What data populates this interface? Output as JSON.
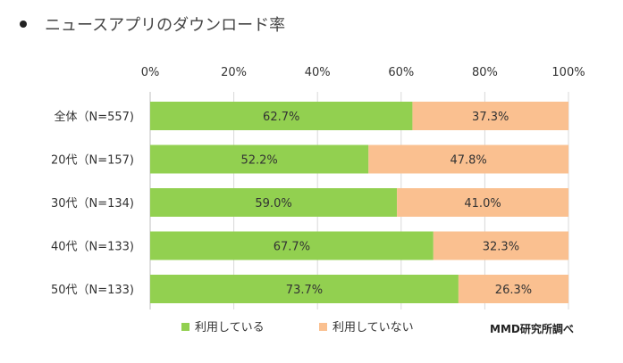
{
  "title": "ニュースアプリのダウンロード率",
  "source": "MMD研究所調べ",
  "chart_data": {
    "type": "bar",
    "orientation": "horizontal",
    "stacked": true,
    "categories": [
      "全体（N=557)",
      "20代（N=157)",
      "30代（N=134)",
      "40代（N=133)",
      "50代（N=133)"
    ],
    "series": [
      {
        "name": "利用している",
        "color": "#92d050",
        "values": [
          62.7,
          52.2,
          59.0,
          67.7,
          73.7
        ],
        "labels": [
          "62.7%",
          "52.2%",
          "59.0%",
          "67.7%",
          "73.7%"
        ]
      },
      {
        "name": "利用していない",
        "color": "#fac090",
        "values": [
          37.3,
          47.8,
          41.0,
          32.3,
          26.3
        ],
        "labels": [
          "37.3%",
          "47.8%",
          "41.0%",
          "32.3%",
          "26.3%"
        ]
      }
    ],
    "xlim": [
      0,
      100
    ],
    "xticks": [
      "0%",
      "20%",
      "40%",
      "60%",
      "80%",
      "100%"
    ],
    "legend_position": "bottom"
  }
}
